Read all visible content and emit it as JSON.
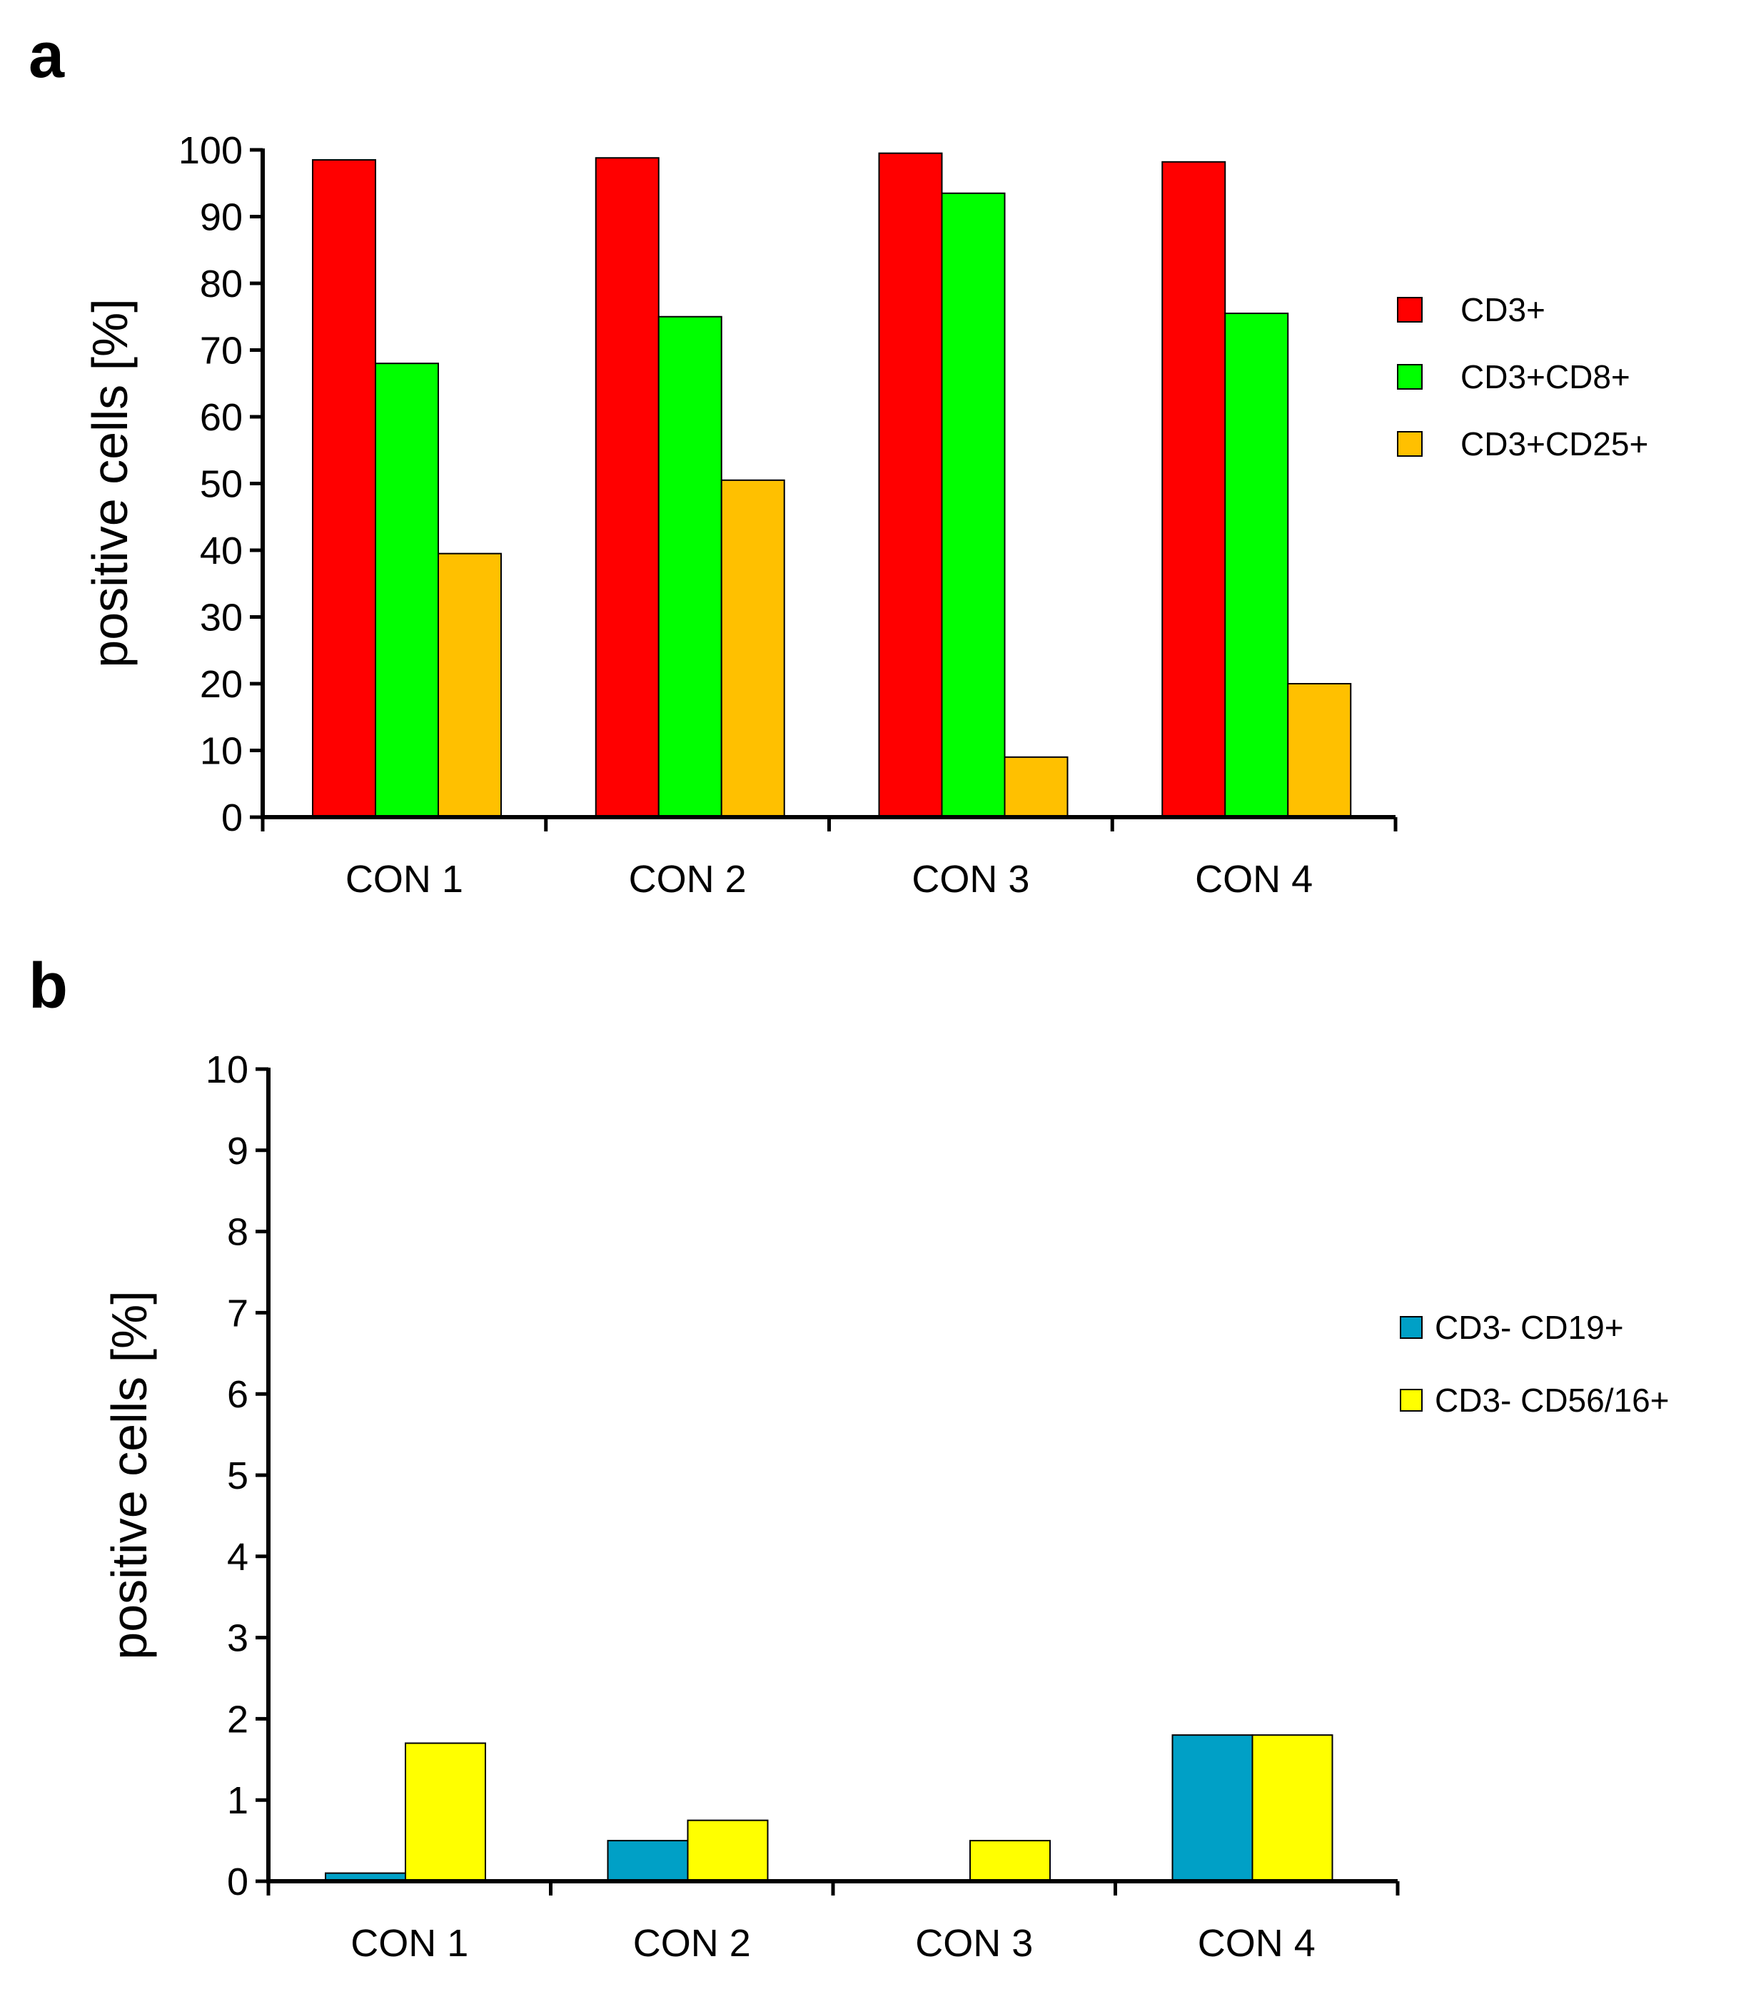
{
  "chart_data": [
    {
      "panel": "a",
      "type": "bar",
      "title": "",
      "xlabel": "",
      "ylabel": "positive cells [%]",
      "ylim": [
        0,
        100
      ],
      "yticks": [
        0,
        10,
        20,
        30,
        40,
        50,
        60,
        70,
        80,
        90,
        100
      ],
      "categories": [
        "CON 1",
        "CON 2",
        "CON 3",
        "CON 4"
      ],
      "legend_position": "right",
      "series": [
        {
          "name": "CD3+",
          "color": "#ff0000",
          "values": [
            98.5,
            98.8,
            99.5,
            98.2
          ]
        },
        {
          "name": "CD3+CD8+",
          "color": "#00ff00",
          "values": [
            68,
            75,
            93.5,
            75.5
          ]
        },
        {
          "name": "CD3+CD25+",
          "color": "#ffc000",
          "values": [
            39.5,
            50.5,
            9,
            20
          ]
        }
      ]
    },
    {
      "panel": "b",
      "type": "bar",
      "title": "",
      "xlabel": "",
      "ylabel": "positive cells [%]",
      "ylim": [
        0,
        10
      ],
      "yticks": [
        0,
        1,
        2,
        3,
        4,
        5,
        6,
        7,
        8,
        9,
        10
      ],
      "categories": [
        "CON 1",
        "CON 2",
        "CON 3",
        "CON 4"
      ],
      "legend_position": "right",
      "series": [
        {
          "name": "CD3- CD19+",
          "color": "#00a0c6",
          "values": [
            0.1,
            0.5,
            0,
            1.8
          ]
        },
        {
          "name": "CD3- CD56/16+",
          "color": "#ffff00",
          "values": [
            1.7,
            0.75,
            0.5,
            1.8
          ]
        }
      ]
    }
  ]
}
